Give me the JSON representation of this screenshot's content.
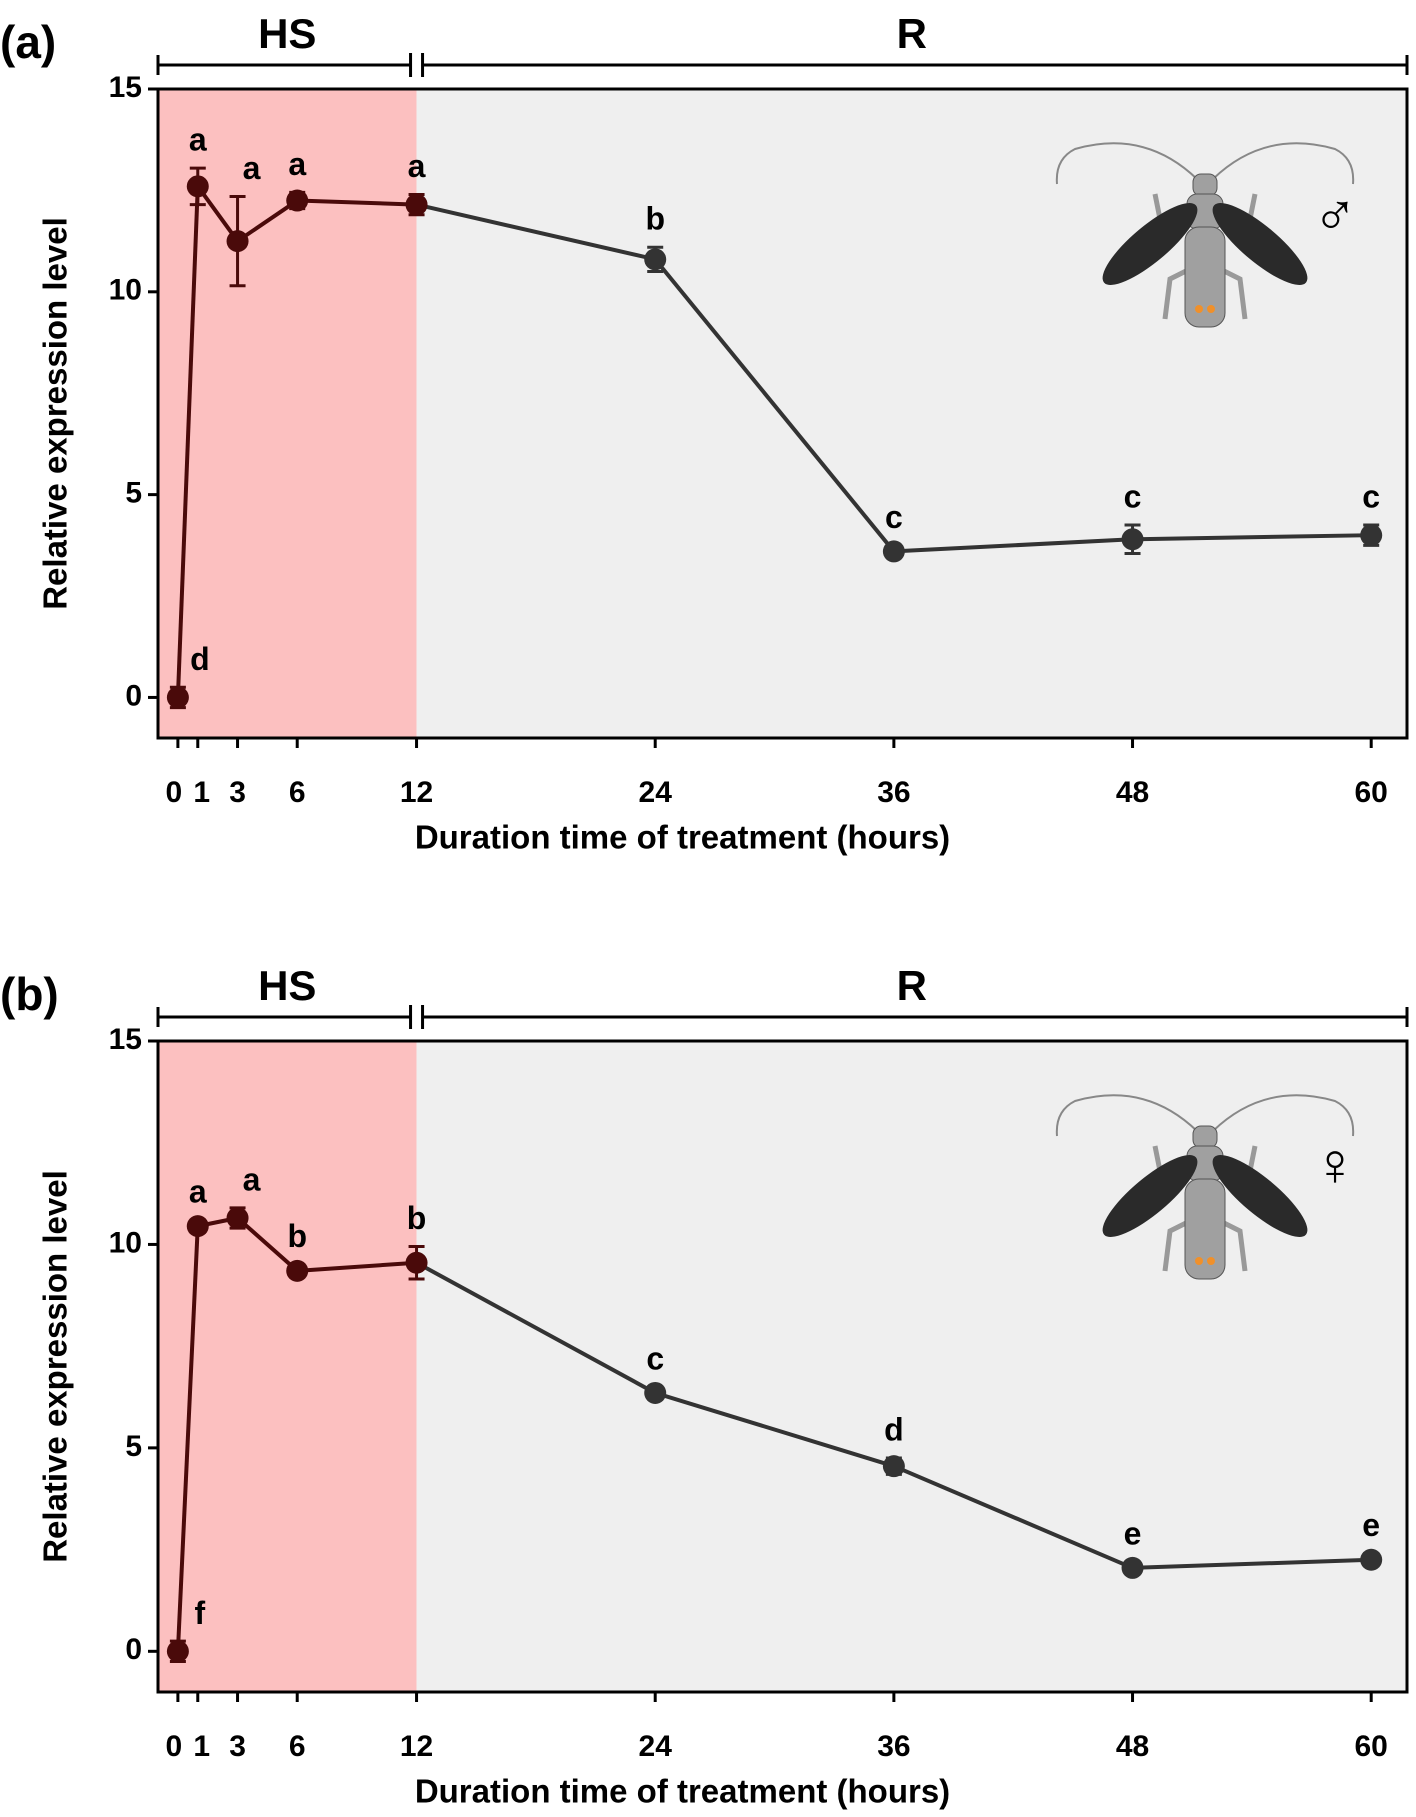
{
  "chart_data": [
    {
      "type": "line",
      "panel_label": "(a)",
      "regions": [
        "HS",
        "R"
      ],
      "sex_symbol": "♂",
      "x_label": "Duration time of treatment (hours)",
      "y_label": "Relative expression level",
      "x": [
        0,
        1,
        3,
        6,
        12,
        24,
        36,
        48,
        60
      ],
      "values": [
        0,
        12.6,
        11.25,
        12.25,
        12.15,
        10.8,
        3.6,
        3.9,
        4.0
      ],
      "errors": [
        0.25,
        0.45,
        1.1,
        0.2,
        0.25,
        0.3,
        0.15,
        0.35,
        0.25
      ],
      "annotations": [
        "d",
        "a",
        "a",
        "a",
        "a",
        "b",
        "c",
        "c",
        "c"
      ],
      "colors": {
        "heat": "#4a0a0a",
        "recovery": "#333333",
        "heat_bg": "#fcc0c0",
        "recovery_bg": "#efefef"
      },
      "xlim": [
        -1,
        61.8
      ],
      "ylim": [
        -1,
        15
      ],
      "xticks": [
        0,
        1,
        3,
        6,
        12,
        24,
        36,
        48,
        60
      ],
      "yticks": [
        0,
        5,
        10,
        15
      ]
    },
    {
      "type": "line",
      "panel_label": "(b)",
      "regions": [
        "HS",
        "R"
      ],
      "sex_symbol": "♀",
      "x_label": "Duration time of treatment (hours)",
      "y_label": "Relative expression level",
      "x": [
        0,
        1,
        3,
        6,
        12,
        24,
        36,
        48,
        60
      ],
      "values": [
        0,
        10.45,
        10.65,
        9.35,
        9.55,
        6.35,
        4.55,
        2.05,
        2.25
      ],
      "errors": [
        0.25,
        0.15,
        0.25,
        0.15,
        0.4,
        0.15,
        0.2,
        0.15,
        0.15
      ],
      "annotations": [
        "f",
        "a",
        "a",
        "b",
        "b",
        "c",
        "d",
        "e",
        "e"
      ],
      "colors": {
        "heat": "#4a0a0a",
        "recovery": "#333333",
        "heat_bg": "#fcc0c0",
        "recovery_bg": "#efefef"
      },
      "xlim": [
        -1,
        61.8
      ],
      "ylim": [
        -1,
        15
      ],
      "xticks": [
        0,
        1,
        3,
        6,
        12,
        24,
        36,
        48,
        60
      ],
      "yticks": [
        0,
        5,
        10,
        15
      ]
    }
  ]
}
